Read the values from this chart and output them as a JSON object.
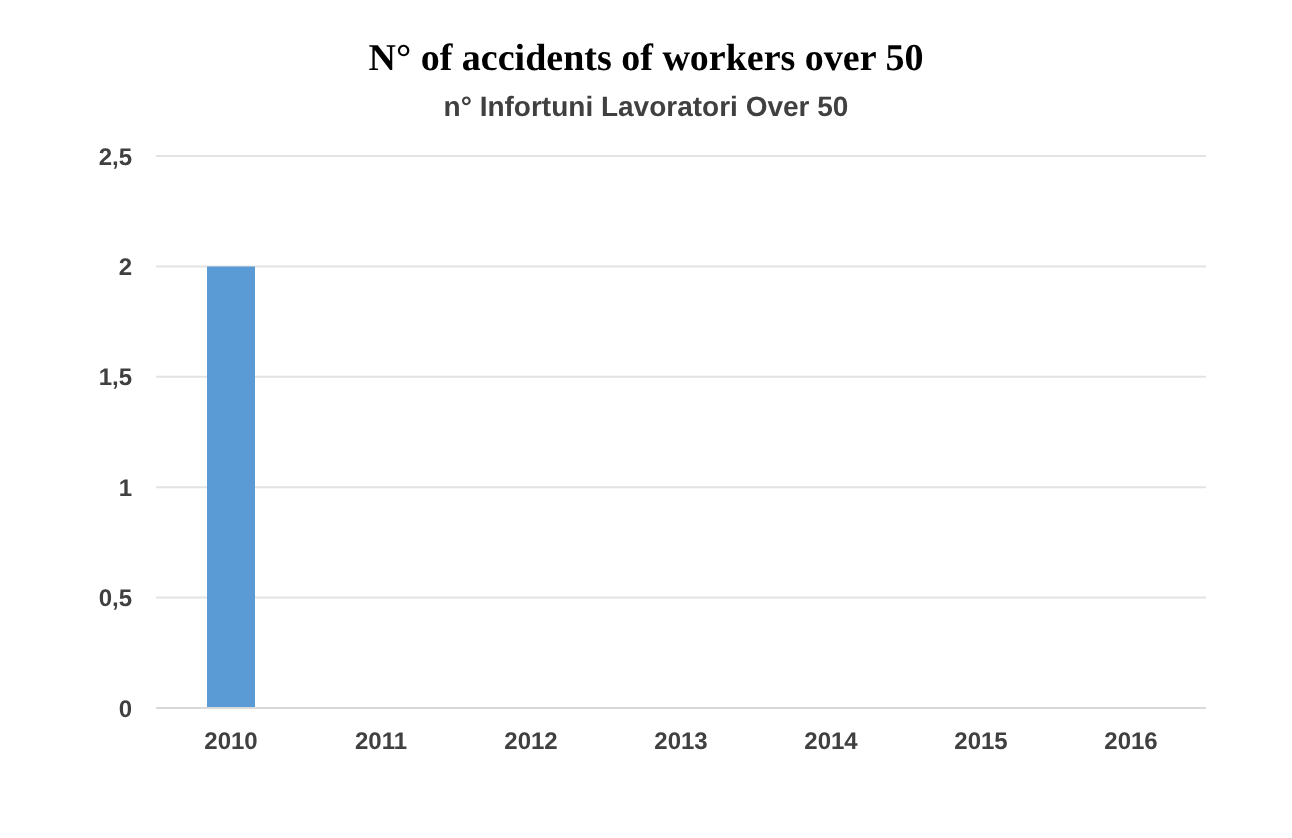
{
  "chart_data": {
    "type": "bar",
    "title": "N° of accidents of workers over 50",
    "subtitle": "n° Infortuni Lavoratori Over 50",
    "categories": [
      "2010",
      "2011",
      "2012",
      "2013",
      "2014",
      "2015",
      "2016"
    ],
    "values": [
      2,
      0,
      0,
      0,
      0,
      0,
      0
    ],
    "color": "#5b9bd5",
    "ylim": [
      0,
      2.5
    ],
    "yticks": [
      0,
      {
        "value": 0.5,
        "label": "0,5"
      },
      1,
      {
        "value": 1.5,
        "label": "1,5"
      },
      2,
      {
        "value": 2.5,
        "label": "2,5"
      }
    ],
    "grid": "y"
  }
}
